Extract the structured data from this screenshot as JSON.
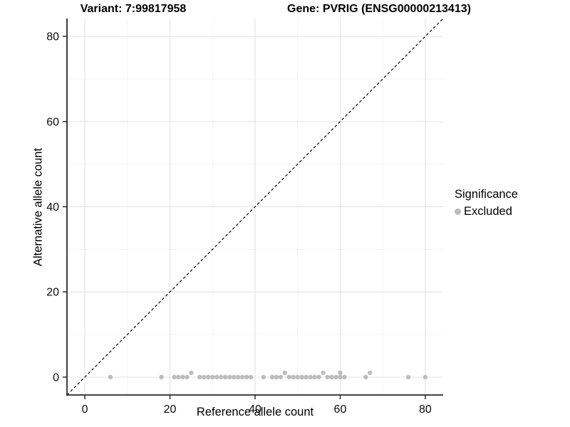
{
  "titles": {
    "variant": "Variant: 7:99817958",
    "gene": "Gene: PVRIG (ENSG00000213413)"
  },
  "legend": {
    "title": "Significance",
    "items": [
      {
        "label": "Excluded",
        "color": "#bdbdbd"
      }
    ]
  },
  "colors": {
    "point": "#bdbdbd",
    "grid_major": "#e3e3e3",
    "grid_minor": "#f1f1f1",
    "axis_line": "#2a2a2a",
    "tick_text": "#0d0d0d",
    "identity_line": "#1a1a1a",
    "background": "#ffffff"
  },
  "chart_data": {
    "type": "scatter",
    "title": "Variant: 7:99817958 — Gene: PVRIG (ENSG00000213413)",
    "xlabel": "Reference allele count",
    "ylabel": "Alternative allele count",
    "xlim": [
      -4.2,
      84.2
    ],
    "ylim": [
      -4.2,
      84.2
    ],
    "x_ticks": [
      0,
      20,
      40,
      60,
      80
    ],
    "y_ticks": [
      0,
      20,
      40,
      60,
      80
    ],
    "x_minor": [
      10,
      30,
      50,
      70
    ],
    "y_minor": [
      10,
      30,
      50,
      70
    ],
    "grid": true,
    "identity_line_dashed": true,
    "legend_position": "right",
    "series": [
      {
        "name": "Excluded",
        "color": "#bdbdbd",
        "points": [
          [
            6,
            0
          ],
          [
            18,
            0
          ],
          [
            21,
            0
          ],
          [
            22,
            0
          ],
          [
            23,
            0
          ],
          [
            24,
            0
          ],
          [
            25,
            1
          ],
          [
            27,
            0
          ],
          [
            28,
            0
          ],
          [
            29,
            0
          ],
          [
            30,
            0
          ],
          [
            31,
            0
          ],
          [
            32,
            0
          ],
          [
            33,
            0
          ],
          [
            34,
            0
          ],
          [
            35,
            0
          ],
          [
            36,
            0
          ],
          [
            37,
            0
          ],
          [
            38,
            0
          ],
          [
            39,
            0
          ],
          [
            42,
            0
          ],
          [
            44,
            0
          ],
          [
            45,
            0
          ],
          [
            46,
            0
          ],
          [
            47,
            1
          ],
          [
            48,
            0
          ],
          [
            49,
            0
          ],
          [
            50,
            0
          ],
          [
            51,
            0
          ],
          [
            52,
            0
          ],
          [
            53,
            0
          ],
          [
            54,
            0
          ],
          [
            55,
            0
          ],
          [
            56,
            1
          ],
          [
            57,
            0
          ],
          [
            58,
            0
          ],
          [
            59,
            0
          ],
          [
            60,
            0
          ],
          [
            60,
            1
          ],
          [
            61,
            0
          ],
          [
            66,
            0
          ],
          [
            67,
            1
          ],
          [
            76,
            0
          ],
          [
            80,
            0
          ]
        ]
      }
    ]
  }
}
